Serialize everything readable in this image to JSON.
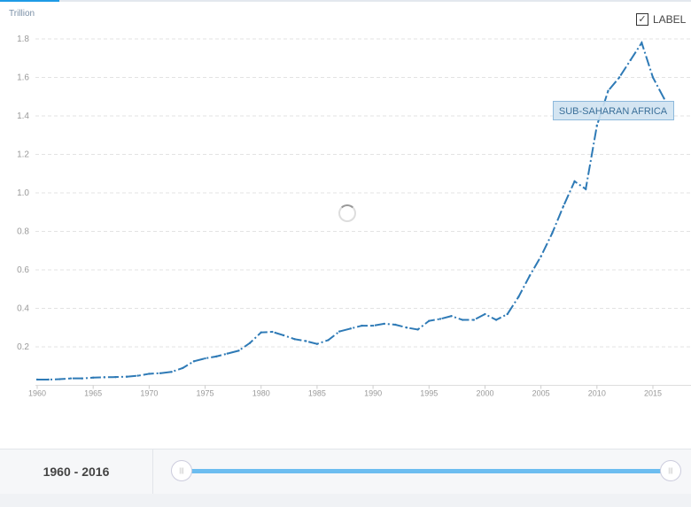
{
  "chart_data": {
    "type": "line",
    "unit_label": "Trillion",
    "x": [
      1960,
      1961,
      1962,
      1963,
      1964,
      1965,
      1966,
      1967,
      1968,
      1969,
      1970,
      1971,
      1972,
      1973,
      1974,
      1975,
      1976,
      1977,
      1978,
      1979,
      1980,
      1981,
      1982,
      1983,
      1984,
      1985,
      1986,
      1987,
      1988,
      1989,
      1990,
      1991,
      1992,
      1993,
      1994,
      1995,
      1996,
      1997,
      1998,
      1999,
      2000,
      2001,
      2002,
      2003,
      2004,
      2005,
      2006,
      2007,
      2008,
      2009,
      2010,
      2011,
      2012,
      2013,
      2014,
      2015,
      2016
    ],
    "series": [
      {
        "name": "SUB-SAHARAN AFRICA",
        "color": "#2e7ab6",
        "values": [
          0.03,
          0.03,
          0.032,
          0.036,
          0.036,
          0.04,
          0.042,
          0.043,
          0.045,
          0.05,
          0.06,
          0.063,
          0.07,
          0.09,
          0.125,
          0.14,
          0.15,
          0.165,
          0.18,
          0.22,
          0.275,
          0.278,
          0.26,
          0.24,
          0.23,
          0.215,
          0.235,
          0.28,
          0.295,
          0.31,
          0.31,
          0.32,
          0.315,
          0.3,
          0.29,
          0.335,
          0.345,
          0.36,
          0.34,
          0.34,
          0.37,
          0.34,
          0.37,
          0.46,
          0.57,
          0.67,
          0.79,
          0.93,
          1.06,
          1.02,
          1.35,
          1.53,
          1.6,
          1.69,
          1.78,
          1.6,
          1.49
        ]
      }
    ],
    "yticks": [
      "0.2",
      "0.4",
      "0.6",
      "0.8",
      "1.0",
      "1.2",
      "1.4",
      "1.6",
      "1.8"
    ],
    "xticks": [
      "1960",
      "1965",
      "1970",
      "1975",
      "1980",
      "1985",
      "1990",
      "1995",
      "2000",
      "2005",
      "2010",
      "2015"
    ],
    "ylim": [
      0,
      1.8
    ],
    "xlim": [
      1960,
      2016
    ],
    "grid": true,
    "series_label": "SUB-SAHARAN AFRICA"
  },
  "controls": {
    "label_toggle": "LABEL",
    "label_checked": true,
    "check_glyph": "✓",
    "range_start": "1960",
    "range_sep": " - ",
    "range_end": "2016",
    "handle_glyph": "|||"
  }
}
